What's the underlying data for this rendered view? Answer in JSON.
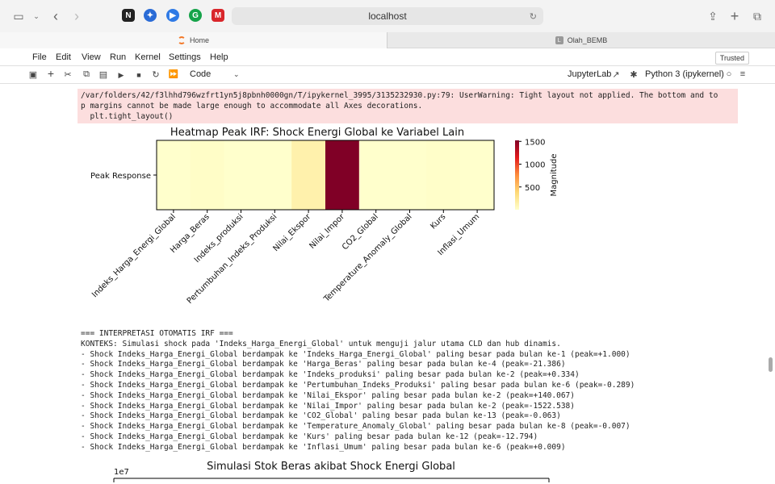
{
  "browser": {
    "url": "localhost"
  },
  "tabs": [
    {
      "label": "Home"
    },
    {
      "label": "Olah_BEMB"
    }
  ],
  "menu": [
    "File",
    "Edit",
    "View",
    "Run",
    "Kernel",
    "Settings",
    "Help"
  ],
  "trusted": "Trusted",
  "toolbar": {
    "cell_type": "Code",
    "jupyterlab": "JupyterLab",
    "kernel": "Python 3 (ipykernel)"
  },
  "warning": {
    "line1": "/var/folders/42/f3lhhd796wzfrt1yn5j8pbnh0000gn/T/ipykernel_3995/3135232930.py:79: UserWarning: Tight layout not applied. The bottom and to",
    "line2": "p margins cannot be made large enough to accommodate all Axes decorations.",
    "line3": "  plt.tight_layout()"
  },
  "chart_data": [
    {
      "type": "heatmap",
      "title": "Heatmap Peak IRF: Shock Energi Global ke Variabel Lain",
      "row_labels": [
        "Peak Response"
      ],
      "categories": [
        "Indeks_Harga_Energi_Global",
        "Harga_Beras",
        "Indeks_produksi",
        "Pertumbuhan_Indeks_Produksi",
        "Nilai_Ekspor",
        "Nilai_Impor",
        "CO2_Global",
        "Temperature_Anomaly_Global",
        "Kurs",
        "Inflasi_Umum"
      ],
      "values": [
        1.0,
        21.386,
        0.334,
        0.289,
        140.067,
        1522.538,
        0.063,
        0.007,
        12.794,
        0.009
      ],
      "colorbar": {
        "label": "Magnitude",
        "ticks": [
          "500",
          "1000",
          "1500"
        ]
      },
      "colormap": "YlOrRd"
    },
    {
      "type": "line",
      "title": "Simulasi Stok Beras akibat Shock Energi Global",
      "axis_scale_label": "1e7"
    }
  ],
  "output_lines": [
    "=== INTERPRETASI OTOMATIS IRF ===",
    "KONTEKS: Simulasi shock pada 'Indeks_Harga_Energi_Global' untuk menguji jalur utama CLD dan hub dinamis.",
    "- Shock Indeks_Harga_Energi_Global berdampak ke 'Indeks_Harga_Energi_Global' paling besar pada bulan ke-1 (peak=+1.000)",
    "- Shock Indeks_Harga_Energi_Global berdampak ke 'Harga_Beras' paling besar pada bulan ke-4 (peak=-21.386)",
    "- Shock Indeks_Harga_Energi_Global berdampak ke 'Indeks_produksi' paling besar pada bulan ke-2 (peak=+0.334)",
    "- Shock Indeks_Harga_Energi_Global berdampak ke 'Pertumbuhan_Indeks_Produksi' paling besar pada bulan ke-6 (peak=-0.289)",
    "- Shock Indeks_Harga_Energi_Global berdampak ke 'Nilai_Ekspor' paling besar pada bulan ke-2 (peak=+140.067)",
    "- Shock Indeks_Harga_Energi_Global berdampak ke 'Nilai_Impor' paling besar pada bulan ke-2 (peak=-1522.538)",
    "- Shock Indeks_Harga_Energi_Global berdampak ke 'CO2_Global' paling besar pada bulan ke-13 (peak=-0.063)",
    "- Shock Indeks_Harga_Energi_Global berdampak ke 'Temperature_Anomaly_Global' paling besar pada bulan ke-8 (peak=-0.007)",
    "- Shock Indeks_Harga_Energi_Global berdampak ke 'Kurs' paling besar pada bulan ke-12 (peak=-12.794)",
    "- Shock Indeks_Harga_Energi_Global berdampak ke 'Inflasi_Umum' paling besar pada bulan ke-6 (peak=+0.009)"
  ]
}
